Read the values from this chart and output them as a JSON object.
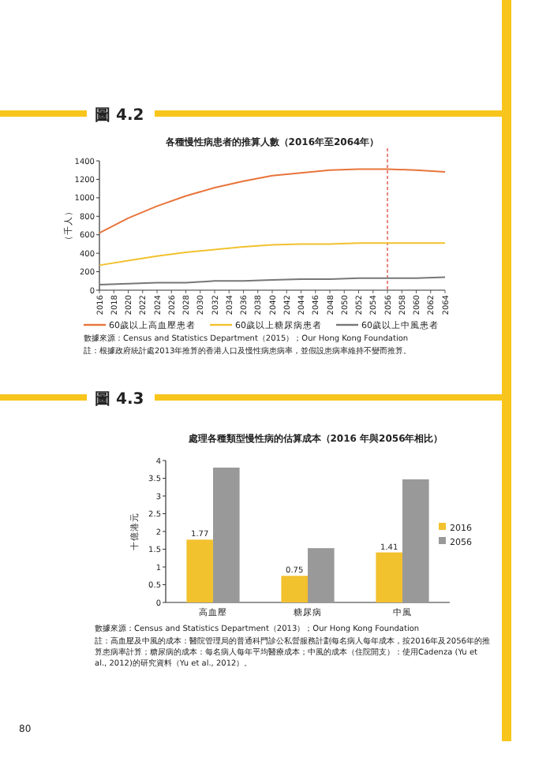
{
  "chart_data": [
    {
      "type": "line",
      "title": "圖 4.2",
      "subtitle": "各種慢性病患者的推算人數（2016年至2064年）",
      "ylabel": "（千人）",
      "xlim": [
        2016,
        2064
      ],
      "xticks": [
        2016,
        2018,
        2020,
        2022,
        2024,
        2026,
        2028,
        2030,
        2032,
        2034,
        2036,
        2038,
        2040,
        2042,
        2044,
        2046,
        2048,
        2050,
        2052,
        2054,
        2056,
        2058,
        2060,
        2062,
        2064
      ],
      "ylim": [
        0,
        1400
      ],
      "yticks": [
        0,
        200,
        400,
        600,
        800,
        1000,
        1200,
        1400
      ],
      "x": [
        2016,
        2020,
        2024,
        2028,
        2032,
        2036,
        2040,
        2044,
        2048,
        2052,
        2056,
        2060,
        2064
      ],
      "series": [
        {
          "name": "60歲以上高血壓患者",
          "color": "#e8743b",
          "values": [
            620,
            780,
            910,
            1020,
            1110,
            1180,
            1240,
            1270,
            1300,
            1310,
            1310,
            1300,
            1280
          ]
        },
        {
          "name": "60歲以上糖尿病患者",
          "color": "#f2c12e",
          "values": [
            270,
            320,
            370,
            410,
            440,
            470,
            490,
            500,
            500,
            510,
            510,
            510,
            510
          ]
        },
        {
          "name": "60歲以上中風患者",
          "color": "#777777",
          "values": [
            60,
            70,
            80,
            80,
            100,
            100,
            110,
            120,
            120,
            130,
            130,
            130,
            140
          ]
        }
      ],
      "ref_lines": [
        {
          "axis": "x",
          "value": 2056,
          "color": "#d9352a",
          "line_style": "dashed"
        }
      ],
      "legend": "bottom",
      "line_style": "solid",
      "marker": "none",
      "annotations": [
        "數據來源：Census and Statistics Department（2015）；Our Hong Kong Foundation",
        "註：根據政府統計處2013年推算的香港人口及慢性病患病率，並假設患病率維持不變而推算。"
      ]
    },
    {
      "type": "bar",
      "title": "圖 4.3",
      "subtitle": "處理各種類型慢性病的估算成本（2016 年與2056年相比）",
      "ylabel": "十億港元",
      "categories": [
        "高血壓",
        "糖尿病",
        "中風"
      ],
      "ylim": [
        0,
        4
      ],
      "yticks": [
        0,
        0.5,
        1,
        1.5,
        2,
        2.5,
        3,
        3.5,
        4
      ],
      "series": [
        {
          "name": "2016",
          "color": "#f2c12e",
          "values": [
            1.77,
            0.75,
            1.41
          ],
          "value_labels": [
            "1.77",
            "0.75",
            "1.41"
          ]
        },
        {
          "name": "2056",
          "color": "#999999",
          "values": [
            3.8,
            1.53,
            3.47
          ]
        }
      ],
      "legend": "right",
      "annotations": [
        "數據來源：Census and Statistics Department（2013）；Our Hong Kong Foundation",
        "註：高血壓及中風的成本：醫院管理局的普通科門診公私營服務計劃每名病人每年成本，按2016年及2056年的推算患病率計算；糖尿病的成本：每名病人每年平均醫療成本；中風的成本（住院開支）：使用Cadenza (Yu et al., 2012)的研究資料（Yu et al., 2012）。",
        "80"
      ]
    }
  ]
}
